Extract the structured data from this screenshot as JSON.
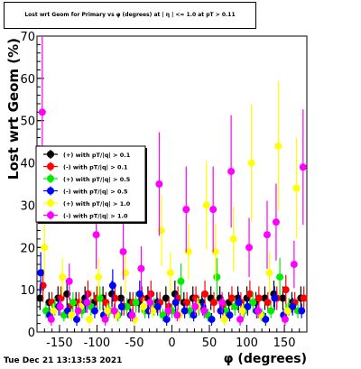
{
  "chart_data": {
    "type": "scatter",
    "title": "Lost wrt Geom for Primary vs φ (degrees) at | η | <= 1.0 at pT > 0.11",
    "xlabel": "φ (degrees)",
    "ylabel": "Lost wrt Geom (%)",
    "xlim": [
      -180,
      180
    ],
    "ylim": [
      0,
      70
    ],
    "x_ticks": [
      "-150",
      "-100",
      "-50",
      "0",
      "50",
      "100",
      "150"
    ],
    "y_ticks": [
      "0",
      "10",
      "20",
      "30",
      "40",
      "50",
      "60",
      "70"
    ],
    "grid": true,
    "legend_position": "left-middle",
    "series": [
      {
        "name": "(+) with pT/|q| > 0.1",
        "color": "#000000",
        "x": [
          -176,
          -164,
          -152,
          -140,
          -128,
          -116,
          -104,
          -92,
          -80,
          -68,
          -56,
          -44,
          -32,
          -20,
          -8,
          4,
          16,
          28,
          40,
          52,
          64,
          76,
          88,
          100,
          112,
          124,
          136,
          148,
          160,
          172
        ],
        "y": [
          8,
          7,
          8,
          9,
          7,
          8,
          7,
          8,
          9,
          8,
          7,
          7,
          8,
          7,
          8,
          9,
          7,
          8,
          7,
          8,
          8,
          7,
          8,
          8,
          7,
          8,
          9,
          8,
          7,
          8
        ]
      },
      {
        "name": "(-) with pT/|q| > 0.1",
        "color": "#ff0000",
        "x": [
          -172,
          -160,
          -148,
          -136,
          -124,
          -112,
          -100,
          -88,
          -76,
          -64,
          -52,
          -40,
          -28,
          -16,
          -4,
          8,
          20,
          32,
          44,
          56,
          68,
          80,
          92,
          104,
          116,
          128,
          140,
          152,
          164,
          176
        ],
        "y": [
          11,
          7,
          8,
          6,
          7,
          9,
          8,
          7,
          8,
          6,
          7,
          8,
          9,
          7,
          6,
          8,
          7,
          8,
          9,
          7,
          6,
          8,
          7,
          9,
          8,
          7,
          8,
          10,
          7,
          8
        ]
      },
      {
        "name": "(+) with pT/|q| > 0.5",
        "color": "#00ee00",
        "x": [
          -168,
          -156,
          -144,
          -132,
          -120,
          -108,
          -96,
          -84,
          -72,
          -60,
          -48,
          -36,
          -24,
          -12,
          0,
          12,
          24,
          36,
          48,
          60,
          72,
          84,
          96,
          108,
          120,
          132,
          144,
          156,
          168
        ],
        "y": [
          5,
          6,
          4,
          7,
          5,
          6,
          8,
          5,
          4,
          6,
          7,
          5,
          6,
          4,
          5,
          12,
          5,
          6,
          4,
          13,
          5,
          6,
          5,
          7,
          4,
          5,
          13,
          6,
          5
        ]
      },
      {
        "name": "(-) with pT/|q| > 0.5",
        "color": "#0000ff",
        "x": [
          -175,
          -163,
          -151,
          -139,
          -127,
          -115,
          -103,
          -91,
          -79,
          -67,
          -55,
          -43,
          -31,
          -19,
          -7,
          5,
          17,
          29,
          41,
          53,
          65,
          77,
          89,
          101,
          113,
          125,
          137,
          149,
          161,
          173
        ],
        "y": [
          14,
          4,
          6,
          5,
          3,
          7,
          5,
          4,
          11,
          6,
          4,
          9,
          5,
          6,
          3,
          7,
          5,
          4,
          6,
          3,
          5,
          4,
          7,
          6,
          5,
          3,
          8,
          4,
          6,
          5
        ]
      },
      {
        "name": "(+) with pT/|q| > 1.0",
        "color": "#ffff00",
        "x": [
          -170,
          -158,
          -146,
          -134,
          -122,
          -110,
          -98,
          -86,
          -74,
          -62,
          -50,
          -38,
          -26,
          -14,
          -2,
          10,
          22,
          34,
          46,
          58,
          70,
          82,
          94,
          106,
          118,
          130,
          142,
          154,
          166
        ],
        "y": [
          20,
          5,
          13,
          4,
          6,
          3,
          13,
          5,
          4,
          14,
          3,
          6,
          5,
          24,
          14,
          4,
          19,
          6,
          30,
          19,
          3,
          22,
          5,
          40,
          4,
          14,
          44,
          5,
          34
        ]
      },
      {
        "name": "(-) with pT/|q| > 1.0",
        "color": "#ff00ff",
        "x": [
          -173,
          -161,
          -149,
          -137,
          -125,
          -113,
          -101,
          -89,
          -77,
          -65,
          -53,
          -41,
          -29,
          -17,
          -5,
          7,
          19,
          31,
          43,
          55,
          67,
          79,
          91,
          103,
          115,
          127,
          139,
          151,
          163,
          175
        ],
        "y": [
          52,
          3,
          6,
          12,
          5,
          7,
          23,
          3,
          5,
          19,
          4,
          15,
          7,
          35,
          5,
          4,
          29,
          6,
          5,
          29,
          7,
          38,
          3,
          20,
          5,
          23,
          26,
          3,
          16,
          39
        ]
      }
    ]
  },
  "footer": {
    "timestamp": "Tue Dec 21 13:13:53 2021"
  }
}
